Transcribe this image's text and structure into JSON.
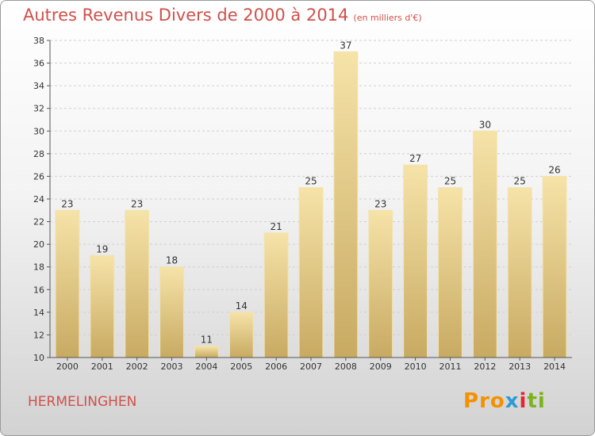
{
  "title": "Autres Revenus Divers de 2000 à 2014",
  "unit_label": "(en milliers d'€)",
  "location": "HERMELINGHEN",
  "logo": {
    "text": "Proxiti",
    "colors": [
      "#f39200",
      "#2d9bd6",
      "#e8242d",
      "#7bb31a"
    ]
  },
  "chart_data": {
    "type": "bar",
    "categories": [
      "2000",
      "2001",
      "2002",
      "2003",
      "2004",
      "2005",
      "2006",
      "2007",
      "2008",
      "2009",
      "2010",
      "2011",
      "2012",
      "2013",
      "2014"
    ],
    "values": [
      23,
      19,
      23,
      18,
      11,
      14,
      21,
      25,
      37,
      23,
      27,
      25,
      30,
      25,
      26
    ],
    "ylim": [
      10,
      38
    ],
    "yticks": [
      10,
      12,
      14,
      16,
      18,
      20,
      22,
      24,
      26,
      28,
      30,
      32,
      34,
      36,
      38
    ],
    "grid": true,
    "bar_color": "#e6c87c"
  }
}
